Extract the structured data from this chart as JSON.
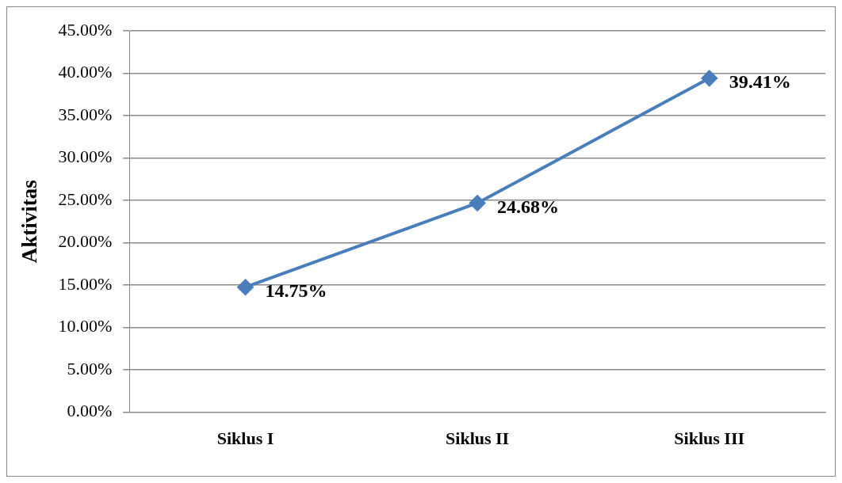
{
  "chart_data": {
    "type": "line",
    "ylabel": "Aktivitas",
    "categories": [
      "Siklus I",
      "Siklus II",
      "Siklus III"
    ],
    "series": [
      {
        "color": "#4a7ebb",
        "values": [
          14.75,
          24.68,
          39.41
        ],
        "value_labels": [
          "14.75%",
          "24.68%",
          "39.41%"
        ]
      }
    ],
    "ylim": [
      0,
      45
    ],
    "yticks": [
      {
        "value": 0,
        "label": "0.00%"
      },
      {
        "value": 5,
        "label": "5.00%"
      },
      {
        "value": 10,
        "label": "10.00%"
      },
      {
        "value": 15,
        "label": "15.00%"
      },
      {
        "value": 20,
        "label": "20.00%"
      },
      {
        "value": 25,
        "label": "25.00%"
      },
      {
        "value": 30,
        "label": "30.00%"
      },
      {
        "value": 35,
        "label": "35.00%"
      },
      {
        "value": 40,
        "label": "40.00%"
      },
      {
        "value": 45,
        "label": "45.00%"
      }
    ],
    "grid": "y",
    "legend": false,
    "marker": "diamond",
    "line_style": "solid"
  }
}
